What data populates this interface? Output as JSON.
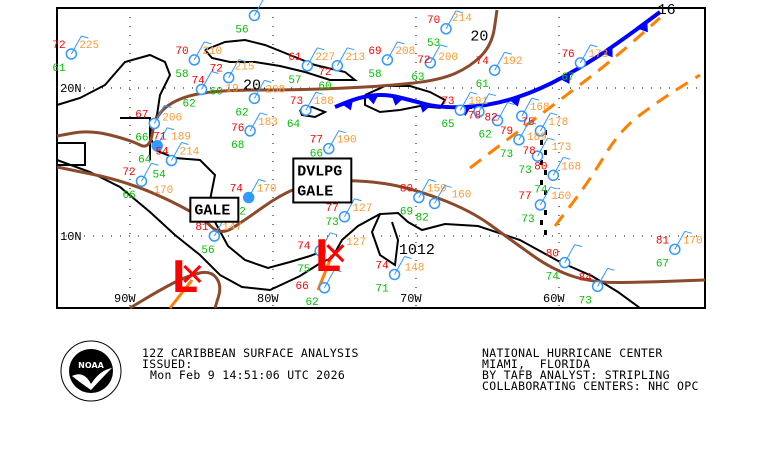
{
  "title": "12Z CARIBBEAN SURFACE ANALYSIS",
  "issued_label": "ISSUED:",
  "issued_time": "Mon Feb 9 14:51:06 UTC 2026",
  "center": {
    "line1": "NATIONAL HURRICANE CENTER",
    "line2": "MIAMI,  FLORIDA",
    "line3": "BY TAFB ANALYST: STRIPLING",
    "line4": "COLLABORATING CENTERS: NHC OPC"
  },
  "logo_text": "NOAA",
  "colors": {
    "temp": "#ff0000",
    "dew": "#00c000",
    "pressure": "#ff9933",
    "station": "#3399ff",
    "isobar": "#8b4a2b",
    "front": "#0000ff",
    "trough": "#ff8000",
    "low": "#ff0000",
    "weather": "#cc00cc"
  },
  "axes": {
    "lat_labels": [
      {
        "lat": 20,
        "text": "20N"
      },
      {
        "lat": 10,
        "text": "10N"
      }
    ],
    "lon_labels": [
      {
        "lon": -90,
        "text": "90W"
      },
      {
        "lon": -80,
        "text": "80W"
      },
      {
        "lon": -70,
        "text": "70W"
      },
      {
        "lon": -60,
        "text": "60W"
      }
    ]
  },
  "isobar_labels": [
    {
      "text": "20",
      "lon": -66.2,
      "lat": 23.2
    },
    {
      "text": "20",
      "lon": -82.1,
      "lat": 19.9
    },
    {
      "text": "16",
      "lon": -53.1,
      "lat": 25.6
    },
    {
      "text": "1012",
      "lon": -71.2,
      "lat": 8.8
    }
  ],
  "lows": [
    {
      "label": "L",
      "lon": -86.9,
      "lat": 7.3
    },
    {
      "label": "L",
      "lon": -76.9,
      "lat": 8.7
    }
  ],
  "warnings": [
    {
      "text": "GALE",
      "lon": -85.5,
      "lat": 11.1
    },
    {
      "text": "DVLPG\nGALE",
      "lon": -78.3,
      "lat": 12.4
    }
  ],
  "stations": [
    {
      "lon": -94.1,
      "lat": 22.3,
      "t": "72",
      "p": "225",
      "d": "61"
    },
    {
      "lon": -85.5,
      "lat": 21.9,
      "t": "70",
      "p": "210",
      "d": "58"
    },
    {
      "lon": -83.1,
      "lat": 20.7,
      "t": "72",
      "p": "215",
      "d": "60"
    },
    {
      "lon": -85.0,
      "lat": 19.9,
      "t": "74",
      "p": "19",
      "d": "62"
    },
    {
      "lon": -81.3,
      "lat": 19.3,
      "t": "",
      "p": "208",
      "d": "62"
    },
    {
      "lon": -88.3,
      "lat": 17.6,
      "t": "67",
      "p": "206",
      "d": "66"
    },
    {
      "lon": -88.1,
      "lat": 16.1,
      "t": "71",
      "p": "189",
      "d": "64",
      "filled": true
    },
    {
      "lon": -87.1,
      "lat": 15.1,
      "t": "54",
      "p": "214",
      "d": "54"
    },
    {
      "lon": -89.2,
      "lat": 13.7,
      "t": "72",
      "p": "170",
      "d": "66"
    },
    {
      "lon": -81.7,
      "lat": 12.6,
      "t": "74",
      "p": "170",
      "d": "72",
      "filled": true
    },
    {
      "lon": -84.1,
      "lat": 10.0,
      "t": "81",
      "p": "147",
      "d": "56"
    },
    {
      "lon": -77.7,
      "lat": 18.5,
      "t": "73",
      "p": "188",
      "d": "64"
    },
    {
      "lon": -81.6,
      "lat": 17.1,
      "t": "76",
      "p": "183",
      "d": "68"
    },
    {
      "lon": -76.1,
      "lat": 15.9,
      "t": "77",
      "p": "190",
      "d": "66"
    },
    {
      "lon": -77.6,
      "lat": 21.5,
      "t": "61",
      "p": "227",
      "d": "57"
    },
    {
      "lon": -75.5,
      "lat": 21.5,
      "t": "72",
      "p": "213",
      "d": "60"
    },
    {
      "lon": -72.0,
      "lat": 21.9,
      "t": "69",
      "p": "208",
      "d": "58"
    },
    {
      "lon": -81.3,
      "lat": 24.9,
      "t": "",
      "p": "",
      "d": "56"
    },
    {
      "lon": -67.9,
      "lat": 24.0,
      "t": "70",
      "p": "214",
      "d": "53"
    },
    {
      "lon": -69.0,
      "lat": 21.7,
      "t": "72",
      "p": "200",
      "d": "63"
    },
    {
      "lon": -64.5,
      "lat": 21.2,
      "t": "74",
      "p": "192",
      "d": "61"
    },
    {
      "lon": -58.5,
      "lat": 21.7,
      "t": "76",
      "p": "173",
      "d": "67"
    },
    {
      "lon": -66.9,
      "lat": 18.5,
      "t": "73",
      "p": "191",
      "d": "65"
    },
    {
      "lon": -65.6,
      "lat": 18.4,
      "t": "78",
      "p": "",
      "d": ""
    },
    {
      "lon": -64.3,
      "lat": 17.8,
      "t": "82",
      "p": "",
      "d": "62"
    },
    {
      "lon": -62.6,
      "lat": 18.1,
      "t": "",
      "p": "168",
      "d": ""
    },
    {
      "lon": -61.3,
      "lat": 17.1,
      "t": "75",
      "p": "178",
      "d": ""
    },
    {
      "lon": -62.8,
      "lat": 16.5,
      "t": "79",
      "p": "189",
      "d": "73"
    },
    {
      "lon": -61.5,
      "lat": 15.4,
      "t": "78",
      "p": "173",
      "d": "73"
    },
    {
      "lon": -60.4,
      "lat": 14.1,
      "t": "80",
      "p": "168",
      "d": "74"
    },
    {
      "lon": -61.3,
      "lat": 12.1,
      "t": "77",
      "p": "160",
      "d": "73"
    },
    {
      "lon": -69.8,
      "lat": 12.6,
      "t": "80",
      "p": "159",
      "d": "69"
    },
    {
      "lon": -68.7,
      "lat": 12.2,
      "t": "",
      "p": "160",
      "d": "82"
    },
    {
      "lon": -75.0,
      "lat": 11.3,
      "t": "77",
      "p": "127",
      "d": "73"
    },
    {
      "lon": -76.7,
      "lat": 9.0,
      "t": "74",
      "p": "127",
      "d": "75"
    },
    {
      "lon": -71.5,
      "lat": 7.4,
      "t": "74",
      "p": "148",
      "d": "71"
    },
    {
      "lon": -76.4,
      "lat": 6.5,
      "t": "66",
      "p": "",
      "d": "62"
    },
    {
      "lon": -59.6,
      "lat": 8.2,
      "t": "80",
      "p": "",
      "d": "74"
    },
    {
      "lon": -57.3,
      "lat": 6.6,
      "t": "84",
      "p": "",
      "d": "73"
    },
    {
      "lon": -51.9,
      "lat": 9.1,
      "t": "81",
      "p": "170",
      "d": "67"
    }
  ]
}
